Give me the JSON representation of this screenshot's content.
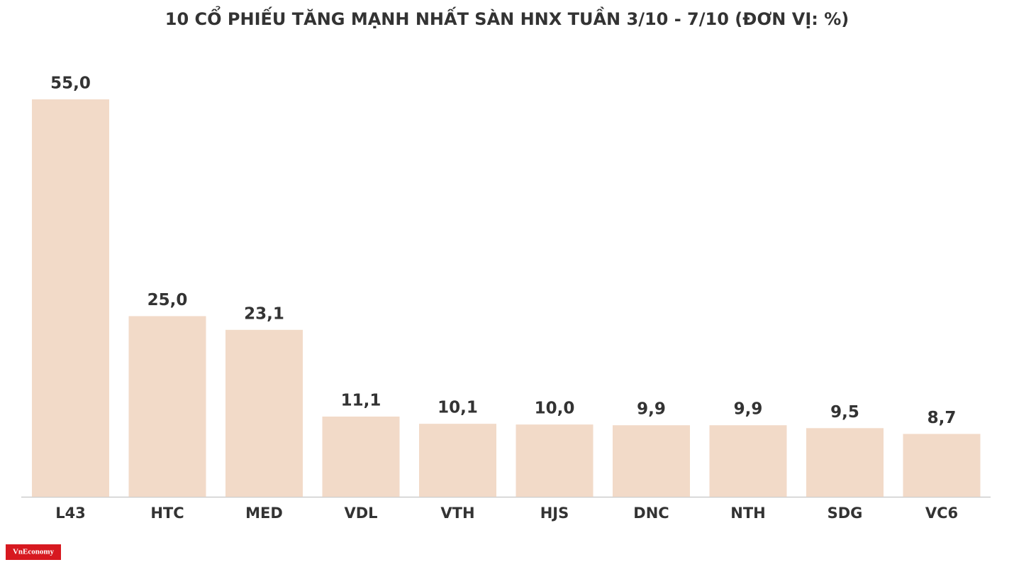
{
  "chart_data": {
    "type": "bar",
    "title": "10 CỔ PHIẾU TĂNG MẠNH NHẤT SÀN HNX TUẦN 3/10 - 7/10 (ĐƠN VỊ: %)",
    "categories": [
      "L43",
      "HTC",
      "MED",
      "VDL",
      "VTH",
      "HJS",
      "DNC",
      "NTH",
      "SDG",
      "VC6"
    ],
    "values": [
      55.0,
      25.0,
      23.1,
      11.1,
      10.1,
      10.0,
      9.9,
      9.9,
      9.5,
      8.7
    ],
    "value_labels": [
      "55,0",
      "25,0",
      "23,1",
      "11,1",
      "10,1",
      "10,0",
      "9,9",
      "9,9",
      "9,5",
      "8,7"
    ],
    "color": "#f2dac8"
  },
  "logo": "VnEconomy"
}
